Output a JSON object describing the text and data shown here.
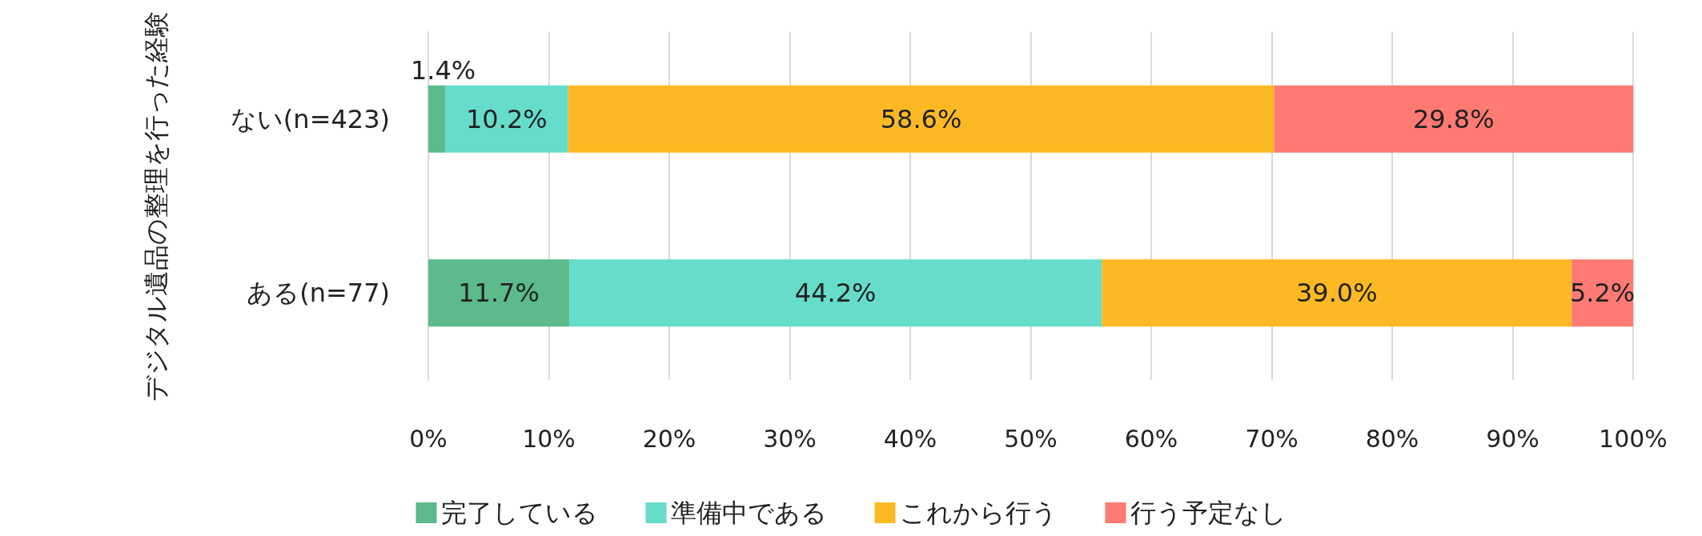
{
  "chart_data": {
    "type": "bar",
    "orientation": "horizontal",
    "stacked": true,
    "ylabel": "デジタル遺品の整理を行った経験",
    "categories": [
      "ない(n=423)",
      "ある(n=77)"
    ],
    "series": [
      {
        "name": "完了している",
        "color": "#5cba8c",
        "values": [
          1.4,
          11.7
        ],
        "value_labels": [
          "1.4%",
          "11.7%"
        ]
      },
      {
        "name": "準備中である",
        "color": "#66dccb",
        "values": [
          10.2,
          44.2
        ],
        "value_labels": [
          "10.2%",
          "44.2%"
        ]
      },
      {
        "name": "これから行う",
        "color": "#fdb924",
        "values": [
          58.6,
          39.0
        ],
        "value_labels": [
          "58.6%",
          "39.0%"
        ]
      },
      {
        "name": "行う予定なし",
        "color": "#fe7a72",
        "values": [
          29.8,
          5.2
        ],
        "value_labels": [
          "29.8%",
          "5.2%"
        ]
      }
    ],
    "xlim": [
      0,
      100
    ],
    "xticks": [
      {
        "value": 0,
        "label": "0%"
      },
      {
        "value": 10,
        "label": "10%"
      },
      {
        "value": 20,
        "label": "20%"
      },
      {
        "value": 30,
        "label": "30%"
      },
      {
        "value": 40,
        "label": "40%"
      },
      {
        "value": 50,
        "label": "50%"
      },
      {
        "value": 60,
        "label": "60%"
      },
      {
        "value": 70,
        "label": "70%"
      },
      {
        "value": 80,
        "label": "80%"
      },
      {
        "value": 90,
        "label": "90%"
      },
      {
        "value": 100,
        "label": "100%"
      }
    ],
    "grid": "x",
    "legend": "bottom"
  }
}
